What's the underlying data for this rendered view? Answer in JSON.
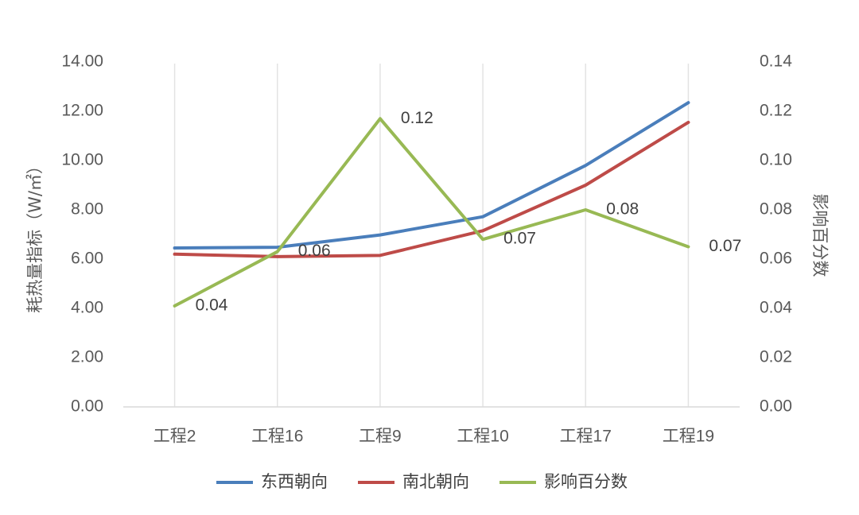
{
  "chart_data": {
    "type": "line",
    "categories": [
      "工程2",
      "工程16",
      "工程9",
      "工程10",
      "工程17",
      "工程19"
    ],
    "ylabel": "耗热量指标（W/㎡）",
    "y2label": "影响百分数",
    "ylim": [
      0,
      14
    ],
    "y2lim": [
      0,
      0.14
    ],
    "yticks": [
      "0.00",
      "2.00",
      "4.00",
      "6.00",
      "8.00",
      "10.00",
      "12.00",
      "14.00"
    ],
    "y2ticks": [
      "0.00",
      "0.02",
      "0.04",
      "0.06",
      "0.08",
      "0.10",
      "0.12",
      "0.14"
    ],
    "grid": "vertical",
    "legend_position": "bottom",
    "series": [
      {
        "name": "东西朝向",
        "axis": "left",
        "color": "#4a7ebb",
        "values": [
          6.45,
          6.48,
          6.98,
          7.72,
          9.8,
          12.35
        ]
      },
      {
        "name": "南北朝向",
        "axis": "left",
        "color": "#be4b48",
        "values": [
          6.2,
          6.1,
          6.15,
          7.15,
          9.0,
          11.55
        ]
      },
      {
        "name": "影响百分数",
        "axis": "right",
        "color": "#98b954",
        "values": [
          0.041,
          0.063,
          0.117,
          0.068,
          0.08,
          0.065
        ],
        "labels": [
          "0.04",
          "0.06",
          "0.12",
          "0.07",
          "0.08",
          "0.07"
        ]
      }
    ]
  }
}
